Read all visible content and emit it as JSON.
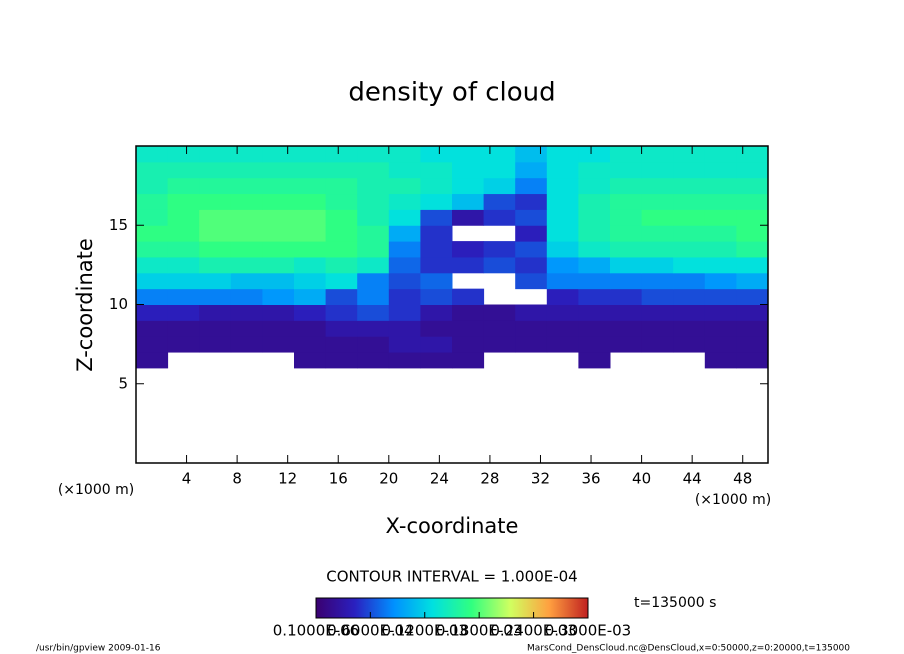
{
  "chart_data": {
    "type": "heatmap",
    "title": "density of cloud",
    "xlabel": "X-coordinate",
    "ylabel": "Z-coordinate",
    "xunit": "(×1000 m)",
    "xlim": [
      0,
      50
    ],
    "ylim": [
      0,
      20
    ],
    "xticks": [
      4,
      8,
      12,
      16,
      20,
      24,
      28,
      32,
      36,
      40,
      44,
      48
    ],
    "yticks": [
      5,
      10,
      15
    ],
    "xbins": [
      0,
      2.5,
      5,
      7.5,
      10,
      12.5,
      15,
      17.5,
      20,
      22.5,
      25,
      27.5,
      30,
      32.5,
      35,
      37.5,
      40,
      42.5,
      45,
      47.5,
      50
    ],
    "zbins": [
      6,
      7,
      8,
      9,
      10,
      11,
      12,
      13,
      14,
      15,
      16,
      17,
      18,
      19,
      20
    ],
    "values": [
      [
        2e-05,
        null,
        null,
        null,
        null,
        2e-05,
        2e-05,
        2e-05,
        2e-05,
        2e-05,
        2e-05,
        null,
        null,
        null,
        2e-05,
        null,
        null,
        null,
        2e-05,
        2e-05
      ],
      [
        2e-05,
        2e-05,
        2e-05,
        2e-05,
        2e-05,
        2e-05,
        2e-05,
        2e-05,
        3e-05,
        3e-05,
        2e-05,
        2e-05,
        2e-05,
        2e-05,
        2e-05,
        2e-05,
        2e-05,
        2e-05,
        2e-05,
        2e-05
      ],
      [
        2e-05,
        2e-05,
        2e-05,
        2e-05,
        2e-05,
        2e-05,
        3e-05,
        3e-05,
        3e-05,
        2e-05,
        2e-05,
        2e-05,
        2e-05,
        2e-05,
        2e-05,
        2e-05,
        2e-05,
        2e-05,
        2e-05,
        2e-05
      ],
      [
        4e-05,
        4e-05,
        3e-05,
        3e-05,
        3e-05,
        4e-05,
        5e-05,
        6e-05,
        5e-05,
        3e-05,
        2e-05,
        2e-05,
        3e-05,
        3e-05,
        3e-05,
        3e-05,
        3e-05,
        3e-05,
        3e-05,
        3e-05
      ],
      [
        8e-05,
        8e-05,
        8e-05,
        8e-05,
        9e-05,
        0.0001,
        6e-05,
        8e-05,
        5e-05,
        6e-05,
        5e-05,
        null,
        null,
        4e-05,
        5e-05,
        5e-05,
        6e-05,
        6e-05,
        6e-05,
        6e-05
      ],
      [
        0.00012,
        0.00012,
        0.00012,
        0.00011,
        0.00011,
        0.00012,
        0.00013,
        8e-05,
        6e-05,
        7e-05,
        null,
        null,
        6e-05,
        8e-05,
        8e-05,
        8e-05,
        8e-05,
        8e-05,
        9e-05,
        0.0001
      ],
      [
        0.00014,
        0.00014,
        0.00015,
        0.00015,
        0.00015,
        0.00014,
        0.00015,
        0.00014,
        7e-05,
        5e-05,
        5e-05,
        6e-05,
        5e-05,
        9e-05,
        0.0001,
        0.00012,
        0.00012,
        0.00013,
        0.00013,
        0.00013
      ],
      [
        0.00016,
        0.00016,
        0.00017,
        0.00017,
        0.00017,
        0.00017,
        0.00017,
        0.00016,
        8e-05,
        5e-05,
        4e-05,
        5e-05,
        6e-05,
        0.00012,
        0.00014,
        0.00015,
        0.00015,
        0.00015,
        0.00015,
        0.00016
      ],
      [
        0.00017,
        0.00017,
        0.00018,
        0.00018,
        0.00018,
        0.00018,
        0.00017,
        0.00016,
        0.0001,
        5e-05,
        null,
        null,
        4e-05,
        0.00013,
        0.00015,
        0.00016,
        0.00016,
        0.00016,
        0.00016,
        0.00017
      ],
      [
        0.00016,
        0.00017,
        0.00018,
        0.00018,
        0.00018,
        0.00018,
        0.00017,
        0.00015,
        0.00013,
        6e-05,
        3e-05,
        5e-05,
        6e-05,
        0.00013,
        0.00015,
        0.00016,
        0.00017,
        0.00017,
        0.00017,
        0.00017
      ],
      [
        0.00016,
        0.00017,
        0.00017,
        0.00017,
        0.00017,
        0.00017,
        0.00016,
        0.00015,
        0.00014,
        0.00013,
        0.00011,
        6e-05,
        5e-05,
        0.00013,
        0.00015,
        0.00016,
        0.00016,
        0.00016,
        0.00016,
        0.00016
      ],
      [
        0.00015,
        0.00016,
        0.00016,
        0.00016,
        0.00016,
        0.00016,
        0.00016,
        0.00015,
        0.00015,
        0.00014,
        0.00013,
        0.00012,
        8e-05,
        0.00013,
        0.00014,
        0.00015,
        0.00015,
        0.00015,
        0.00015,
        0.00015
      ],
      [
        0.00015,
        0.00015,
        0.00015,
        0.00015,
        0.00015,
        0.00015,
        0.00015,
        0.00015,
        0.00014,
        0.00014,
        0.00013,
        0.00013,
        0.0001,
        0.00013,
        0.00014,
        0.00014,
        0.00014,
        0.00014,
        0.00014,
        0.00014
      ],
      [
        0.00014,
        0.00014,
        0.00014,
        0.00014,
        0.00014,
        0.00014,
        0.00014,
        0.00014,
        0.00014,
        0.00013,
        0.00013,
        0.00013,
        0.00011,
        0.00013,
        0.00013,
        0.00014,
        0.00014,
        0.00014,
        0.00014,
        0.00014
      ]
    ],
    "colormap": [
      "#3a0070",
      "#2a20c0",
      "#0090ff",
      "#00e0e0",
      "#30ff80",
      "#d0ff60",
      "#ffa040",
      "#c02020"
    ],
    "contour_interval": "CONTOUR INTERVAL = 1.000E-04",
    "colorbar": {
      "lim": [
        1e-07,
        0.0003
      ],
      "ticks": [
        {
          "value": 1e-07,
          "label": "0.1000E-06"
        },
        {
          "value": 6e-05,
          "label": "0.6000E-04"
        },
        {
          "value": 0.00012,
          "label": "0.1200E-03"
        },
        {
          "value": 0.00018,
          "label": "0.1800E-03"
        },
        {
          "value": 0.00024,
          "label": "0.2400E-03"
        },
        {
          "value": 0.0003,
          "label": "0.3000E-03"
        }
      ]
    },
    "time": "t=135000 s",
    "footer_left": "/usr/bin/gpview  2009-01-16",
    "footer_right": "MarsCond_DensCloud.nc@DensCloud,x=0:50000,z=0:20000,t=135000"
  }
}
